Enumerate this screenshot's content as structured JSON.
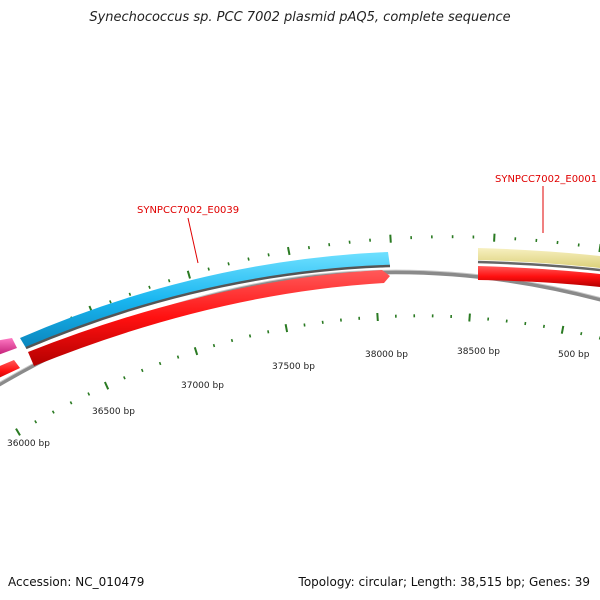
{
  "title": "Synechococcus sp. PCC 7002 plasmid pAQ5, complete sequence",
  "footer": {
    "accession": "Accession: NC_010479",
    "summary": "Topology: circular; Length: 38,515 bp; Genes: 39"
  },
  "plasmid": {
    "length_bp": 38515
  },
  "tick_labels": [
    {
      "text": "36000 bp",
      "bp": 36000
    },
    {
      "text": "36500 bp",
      "bp": 36500
    },
    {
      "text": "37000 bp",
      "bp": 37000
    },
    {
      "text": "37500 bp",
      "bp": 37500
    },
    {
      "text": "38000 bp",
      "bp": 38000
    },
    {
      "text": "38500 bp",
      "bp": 38500
    },
    {
      "text": "500 bp",
      "bp": 500
    }
  ],
  "gene_labels": [
    {
      "text": "SYNPCC7002_E0039"
    },
    {
      "text": "SYNPCC7002_E0001"
    }
  ],
  "colors": {
    "cds": "#ff1010",
    "gene_blue": "#19b6f0",
    "gene_yellow": "#efe59a",
    "gene_magenta": "#e8208c",
    "backbone": "#888888",
    "tick": "#2a7a22",
    "label": "#e00000"
  }
}
